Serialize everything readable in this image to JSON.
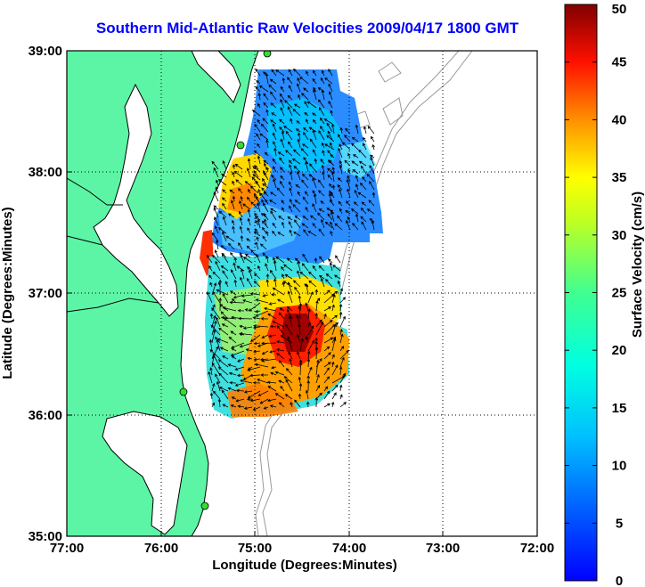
{
  "title": "Southern Mid-Atlantic Raw Velocities 2009/04/17 1800 GMT",
  "x_axis": {
    "label": "Longitude (Degrees:Minutes)",
    "ticks": [
      "77:00",
      "76:00",
      "75:00",
      "74:00",
      "73:00",
      "72:00"
    ],
    "range": [
      -77,
      -72
    ]
  },
  "y_axis": {
    "label": "Latitude (Degrees:Minutes)",
    "ticks": [
      "35:00",
      "36:00",
      "37:00",
      "38:00",
      "39:00"
    ],
    "range": [
      35,
      39
    ]
  },
  "colorbar": {
    "label": "Surface Velocity (cm/s)",
    "ticks": [
      "0",
      "5",
      "10",
      "15",
      "20",
      "25",
      "30",
      "35",
      "40",
      "45",
      "50"
    ],
    "range": [
      0,
      50
    ],
    "colormap": "jet"
  },
  "colors": {
    "land": "#5cf5a6",
    "water": "#ffffff",
    "coastline": "#000000",
    "bathymetry": "#9a9a9a",
    "title": "#0000ff",
    "station_marker": "#33dd33"
  },
  "grid": "dotted"
}
